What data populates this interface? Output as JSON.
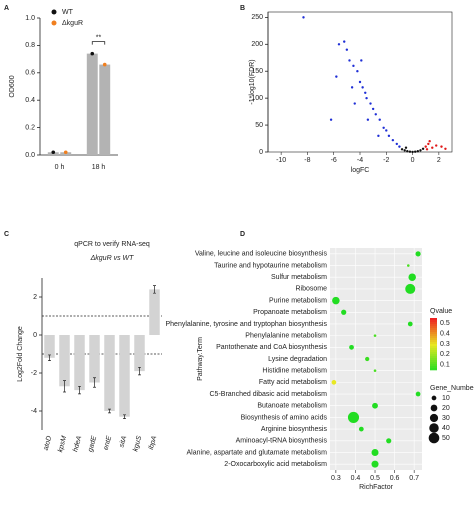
{
  "chart_data": [
    {
      "type": "bar",
      "panel": "A",
      "y_label": "OD600",
      "categories": [
        "0 h",
        "18 h"
      ],
      "bar_color": "#b3b3b3",
      "series": [
        {
          "name": "WT",
          "color": "#111111",
          "values": [
            0.02,
            0.74
          ]
        },
        {
          "name": "ΔkguR",
          "color": "#f07f1e",
          "values": [
            0.02,
            0.66
          ]
        }
      ],
      "ylim": [
        0,
        1.0
      ],
      "yticks": [
        {
          "value": 0,
          "label": "0.0"
        },
        {
          "value": 0.2,
          "label": "0.2"
        },
        {
          "value": 0.4,
          "label": "0.4"
        },
        {
          "value": 0.6,
          "label": "0.6"
        },
        {
          "value": 0.8,
          "label": "0.8"
        },
        {
          "value": 1.0,
          "label": "1.0"
        }
      ],
      "annotation": "**"
    },
    {
      "type": "scatter",
      "panel": "B",
      "x_label": "logFC",
      "y_label": "-1*log10(FDR)",
      "series": [
        {
          "color": "#1f2fd6",
          "x": [
            -8.3,
            -5.6,
            -5.2,
            -5,
            -4.8,
            -4.5,
            -4.2,
            -4,
            -3.8,
            -3.6,
            -3.5,
            -3.2,
            -3,
            -2.8,
            -2.5,
            -2.2,
            -2,
            -1.8,
            -1.5,
            -1.2,
            -1,
            -3.4,
            -4.6,
            -5.8,
            -6.2,
            -2.6,
            -3.9,
            -4.4
          ],
          "y": [
            250,
            200,
            205,
            190,
            170,
            160,
            150,
            130,
            120,
            110,
            100,
            90,
            80,
            70,
            60,
            45,
            40,
            30,
            22,
            15,
            10,
            60,
            120,
            140,
            60,
            30,
            170,
            90
          ]
        },
        {
          "color": "#111111",
          "x": [
            -0.8,
            -0.6,
            -0.4,
            -0.2,
            0,
            0.2,
            0.4,
            0.6,
            0.8,
            -0.5
          ],
          "y": [
            5,
            3,
            1.5,
            0.5,
            0.2,
            0.5,
            1.5,
            3,
            6,
            8
          ]
        },
        {
          "color": "#e01818",
          "x": [
            1,
            1.2,
            1.5,
            1.8,
            2.2,
            1.3,
            2.5,
            1.1
          ],
          "y": [
            10,
            15,
            8,
            12,
            10,
            20,
            6,
            5
          ]
        }
      ],
      "xlim": [
        -11,
        3
      ],
      "xticks": [
        -10,
        -8,
        -6,
        -4,
        -2,
        0,
        2
      ],
      "ylim": [
        0,
        260
      ],
      "yticks": [
        0,
        50,
        100,
        150,
        200,
        250
      ]
    },
    {
      "type": "bar",
      "panel": "C",
      "title": "qPCR to verify RNA-seq",
      "subtitle": "ΔkguR vs WT",
      "y_label": "Log2Fold Change",
      "categories": [
        "atoD",
        "kpsM",
        "hdeA",
        "gadE",
        "entE",
        "sitA",
        "kguS",
        "ibpA"
      ],
      "values": [
        -1.2,
        -2.7,
        -2.9,
        -2.5,
        -4.0,
        -4.3,
        -1.9,
        2.4
      ],
      "errors": [
        0.15,
        0.3,
        0.2,
        0.25,
        0.1,
        0.1,
        0.2,
        0.2
      ],
      "color": "#d3d3d3",
      "hlines": [
        1,
        -1
      ],
      "ylim": [
        -5,
        3
      ],
      "yticks": [
        -4,
        -2,
        0,
        2
      ]
    },
    {
      "type": "bubble",
      "panel": "D",
      "x_label": "RichFactor",
      "y_label": "Pathway.Term",
      "categories": [
        "Valine, leucine and isoleucine biosynthesis",
        "Taurine and hypotaurine metabolism",
        "Sulfur metabolism",
        "Ribosome",
        "Purine metabolism",
        "Propanoate metabolism",
        "Phenylalanine, tyrosine and tryptophan biosynthesis",
        "Phenylalanine metabolism",
        "Pantothenate and CoA biosynthesis",
        "Lysine degradation",
        "Histidine metabolism",
        "Fatty acid metabolism",
        "C5-Branched dibasic acid metabolism",
        "Butanoate metabolism",
        "Biosynthesis of amino acids",
        "Arginine biosynthesis",
        "Aminoacyl-tRNA biosynthesis",
        "Alanine, aspartate and glutamate metabolism",
        "2-Oxocarboxylic acid metabolism"
      ],
      "values": [
        0.72,
        0.67,
        0.69,
        0.68,
        0.3,
        0.34,
        0.68,
        0.5,
        0.38,
        0.46,
        0.5,
        0.29,
        0.72,
        0.5,
        0.39,
        0.43,
        0.57,
        0.5,
        0.5
      ],
      "sizes": [
        12,
        3,
        25,
        45,
        25,
        12,
        10,
        3,
        10,
        8,
        3,
        10,
        10,
        15,
        55,
        10,
        12,
        22,
        22
      ],
      "qvalues": [
        0.05,
        0.1,
        0.05,
        0.03,
        0.05,
        0.05,
        0.05,
        0.1,
        0.05,
        0.08,
        0.1,
        0.3,
        0.05,
        0.05,
        0.02,
        0.05,
        0.05,
        0.05,
        0.05
      ],
      "xlim": [
        0.27,
        0.74
      ],
      "xticks": [
        0.3,
        0.4,
        0.5,
        0.6,
        0.7
      ],
      "color_title": "Qvalue",
      "color_lim": [
        0.05,
        0.55
      ],
      "color_ticks": [
        0.1,
        0.2,
        0.3,
        0.4,
        0.5
      ],
      "color_stops": [
        "#22dd22",
        "#e8e822",
        "#ee2222"
      ],
      "size_title": "Gene_Number",
      "size_ticks": [
        10,
        20,
        30,
        40,
        50
      ]
    }
  ]
}
